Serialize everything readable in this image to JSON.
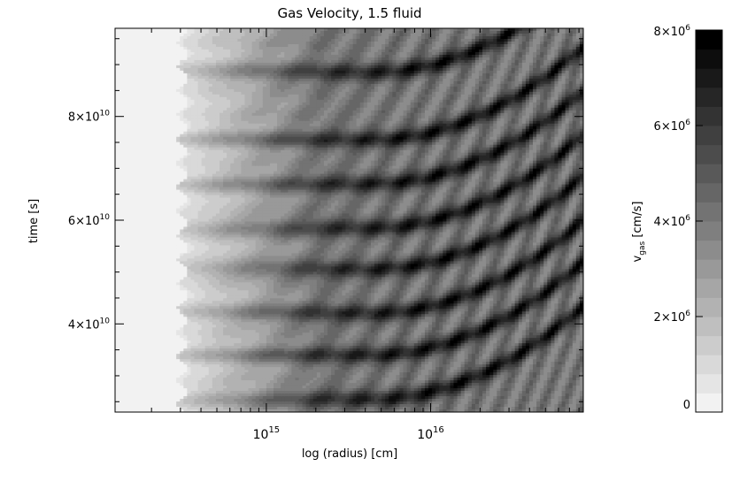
{
  "chart_data": {
    "type": "heatmap",
    "title": "Gas Velocity, 1.5 fluid",
    "xlabel": "log (radius) [cm]",
    "ylabel": "time [s]",
    "x_scale": "log",
    "xlim": [
      120000000000000.0,
      8.5e+16
    ],
    "ylim": [
      23000000000.0,
      97000000000.0
    ],
    "x_ticks": [
      {
        "value": 1000000000000000.0,
        "base": "10",
        "exp": "15"
      },
      {
        "value": 1e+16,
        "base": "10",
        "exp": "16"
      }
    ],
    "y_ticks": [
      {
        "value": 40000000000.0,
        "mant": "4×10",
        "exp": "10"
      },
      {
        "value": 60000000000.0,
        "mant": "6×10",
        "exp": "10"
      },
      {
        "value": 80000000000.0,
        "mant": "8×10",
        "exp": "10"
      }
    ],
    "band_times": [
      25500000000.0,
      34000000000.0,
      42000000000.0,
      50500000000.0,
      58500000000.0,
      67000000000.0,
      75500000000.0,
      88500000000.0
    ],
    "colorbar": {
      "label_main": "v",
      "label_sub": "gas",
      "label_unit": " [cm/s]",
      "range": [
        0,
        8000000.0
      ],
      "levels": 20,
      "ticks": [
        {
          "value": 0,
          "mant": "0",
          "exp": ""
        },
        {
          "value": 2000000.0,
          "mant": "2×10",
          "exp": "6"
        },
        {
          "value": 4000000.0,
          "mant": "4×10",
          "exp": "6"
        },
        {
          "value": 6000000.0,
          "mant": "6×10",
          "exp": "6"
        },
        {
          "value": 8000000.0,
          "mant": "8×10",
          "exp": "6"
        }
      ]
    },
    "colormap": {
      "low": "#f2f2f2",
      "high": "#000000"
    }
  }
}
